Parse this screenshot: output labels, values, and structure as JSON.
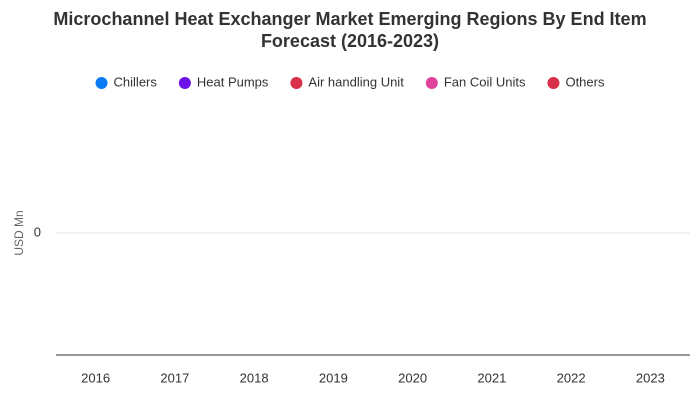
{
  "chart_data": {
    "type": "stacked_bar",
    "title": "Microchannel Heat Exchanger Market Emerging Regions By End Item Forecast (2016-2023)",
    "y_label": "USD Mn",
    "categories": [
      "2016",
      "2017",
      "2018",
      "2019",
      "2020",
      "2021",
      "2022",
      "2023"
    ],
    "series": [
      {
        "name": "Chillers",
        "color": "#0a7cf5",
        "values": [
          0,
          0,
          0,
          0,
          0,
          0,
          0,
          0
        ]
      },
      {
        "name": "Heat Pumps",
        "color": "#6a12e8",
        "values": [
          0,
          0,
          0,
          0,
          0,
          0,
          0,
          0
        ]
      },
      {
        "name": "Air handling Unit",
        "color": "#d9304a",
        "values": [
          0,
          0,
          0,
          0,
          0,
          0,
          0,
          0
        ]
      },
      {
        "name": "Fan Coil Units",
        "color": "#e0439a",
        "values": [
          0,
          0,
          0,
          0,
          0,
          0,
          0,
          0
        ]
      },
      {
        "name": "Others",
        "color": "#d9304a",
        "values": [
          0,
          0,
          0,
          0,
          0,
          0,
          0,
          0
        ]
      }
    ],
    "ylim": [
      -1,
      1
    ],
    "yticks": [
      0
    ],
    "grid": true,
    "legend": "top"
  }
}
